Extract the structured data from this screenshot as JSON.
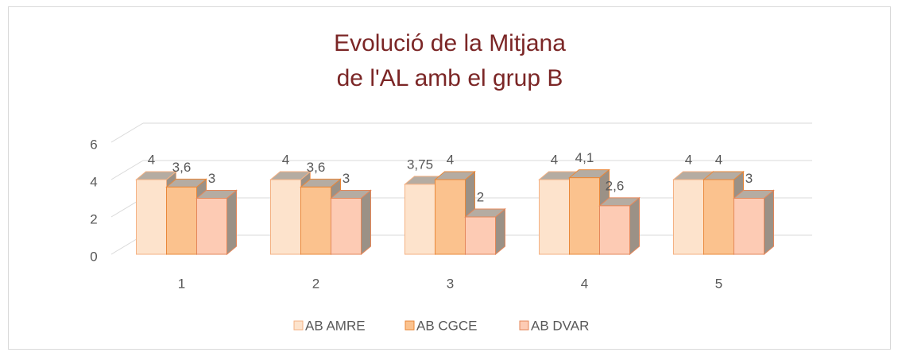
{
  "chart_data": {
    "type": "bar3d",
    "title": [
      "Evolució de la Mitjana",
      "de l'AL amb el grup B"
    ],
    "categories": [
      "1",
      "2",
      "3",
      "4",
      "5"
    ],
    "series": [
      {
        "name": "AB AMRE",
        "color": "#fde3cc",
        "values": [
          4,
          4,
          3.75,
          4,
          4
        ],
        "value_labels": [
          "4",
          "4",
          "3,75",
          "4",
          "4"
        ]
      },
      {
        "name": "AB CGCE",
        "color": "#fbc28e",
        "values": [
          3.6,
          3.6,
          4,
          4.1,
          4
        ],
        "value_labels": [
          "3,6",
          "3,6",
          "4",
          "4,1",
          "4"
        ]
      },
      {
        "name": "AB DVAR",
        "color": "#fdcbb4",
        "values": [
          3,
          3,
          2,
          2.6,
          3
        ],
        "value_labels": [
          "3",
          "3",
          "2",
          "2,6",
          "3"
        ]
      }
    ],
    "ylim": [
      0,
      6
    ],
    "yticks": [
      0,
      2,
      4,
      6
    ],
    "grid": true,
    "legend": "bottom"
  }
}
